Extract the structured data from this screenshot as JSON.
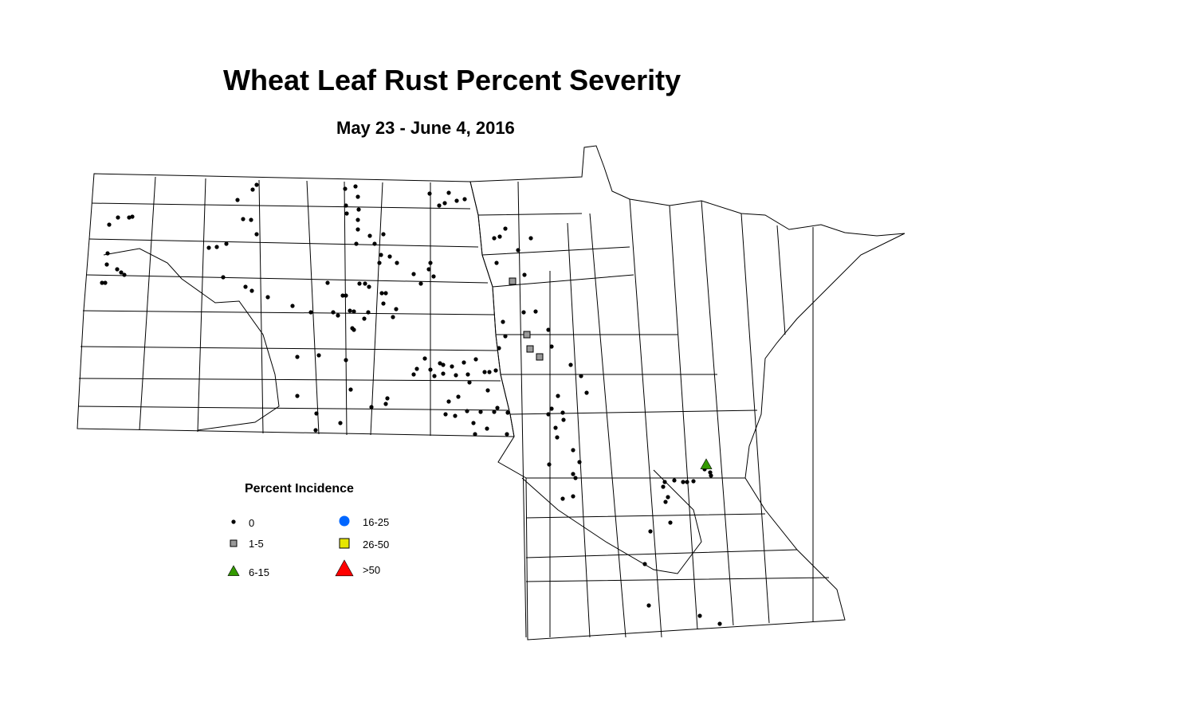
{
  "title": "Wheat Leaf Rust Percent Severity",
  "subtitle": "May 23 - June 4, 2016",
  "legend": {
    "title": "Percent Incidence",
    "items": [
      {
        "label": "0",
        "symbol": "dot",
        "color": "#000000"
      },
      {
        "label": "1-5",
        "symbol": "square",
        "color": "#999999"
      },
      {
        "label": "6-15",
        "symbol": "triangle",
        "color": "#339900"
      },
      {
        "label": "16-25",
        "symbol": "circle",
        "color": "#0066ff"
      },
      {
        "label": "26-50",
        "symbol": "square",
        "color": "#e6e600"
      },
      {
        "label": ">50",
        "symbol": "triangle",
        "color": "#ff0000"
      }
    ]
  }
}
